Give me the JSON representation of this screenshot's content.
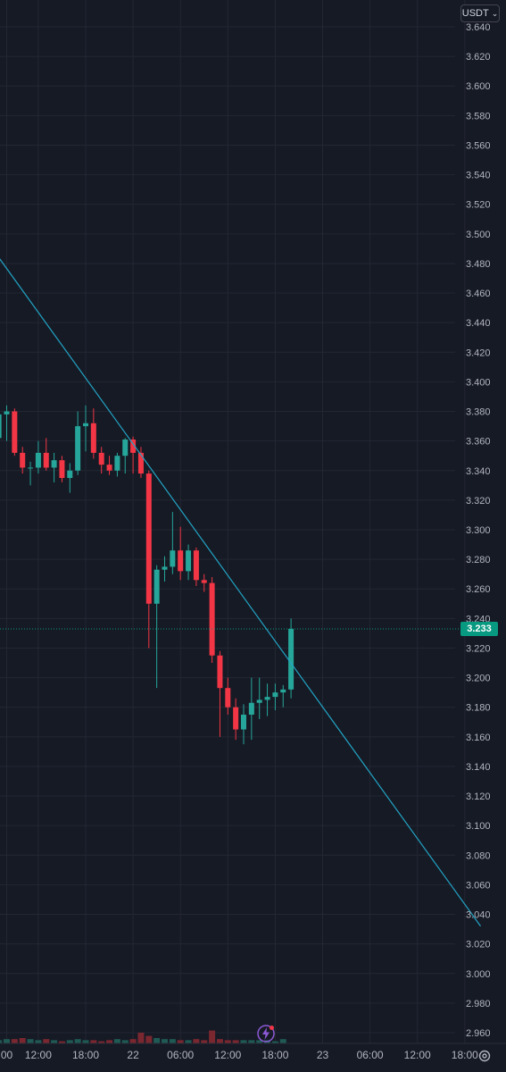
{
  "header": {
    "currency_label": "USDT",
    "currency_chevron": "chevron-down-icon"
  },
  "price_tag": {
    "value": "3.233",
    "color": "#089981"
  },
  "icons": {
    "settings": "gear-icon",
    "alert": "lightning-icon"
  },
  "colors": {
    "background": "#161a25",
    "grid": "#232733",
    "up": "#26a69a",
    "down": "#f23645",
    "trendline": "#22a4c4",
    "text": "#b2b5be"
  },
  "chart_data": {
    "type": "candlestick",
    "y_axis": {
      "min": 2.95,
      "max": 3.65,
      "ticks": [
        "3.640",
        "3.620",
        "3.600",
        "3.580",
        "3.560",
        "3.540",
        "3.520",
        "3.500",
        "3.480",
        "3.460",
        "3.440",
        "3.420",
        "3.400",
        "3.380",
        "3.360",
        "3.340",
        "3.320",
        "3.300",
        "3.280",
        "3.260",
        "3.240",
        "3.220",
        "3.200",
        "3.180",
        "3.160",
        "3.140",
        "3.120",
        "3.100",
        "3.080",
        "3.060",
        "3.040",
        "3.020",
        "3.000",
        "2.980",
        "2.960"
      ]
    },
    "x_axis": {
      "labels": [
        {
          "t": 0,
          "label": "00"
        },
        {
          "t": 4,
          "label": "12:00"
        },
        {
          "t": 10,
          "label": "18:00"
        },
        {
          "t": 16,
          "label": "22"
        },
        {
          "t": 22,
          "label": "06:00"
        },
        {
          "t": 28,
          "label": "12:00"
        },
        {
          "t": 34,
          "label": "18:00"
        },
        {
          "t": 40,
          "label": "23"
        },
        {
          "t": 46,
          "label": "06:00"
        },
        {
          "t": 52,
          "label": "12:00"
        },
        {
          "t": 58,
          "label": "18:00"
        }
      ]
    },
    "candles": [
      {
        "t": -1,
        "o": 3.362,
        "h": 3.382,
        "l": 3.355,
        "c": 3.378
      },
      {
        "t": 0,
        "o": 3.378,
        "h": 3.384,
        "l": 3.36,
        "c": 3.38
      },
      {
        "t": 1,
        "o": 3.38,
        "h": 3.382,
        "l": 3.35,
        "c": 3.352
      },
      {
        "t": 2,
        "o": 3.352,
        "h": 3.356,
        "l": 3.338,
        "c": 3.342
      },
      {
        "t": 3,
        "o": 3.342,
        "h": 3.346,
        "l": 3.33,
        "c": 3.342
      },
      {
        "t": 4,
        "o": 3.342,
        "h": 3.36,
        "l": 3.338,
        "c": 3.352
      },
      {
        "t": 5,
        "o": 3.352,
        "h": 3.362,
        "l": 3.34,
        "c": 3.342
      },
      {
        "t": 6,
        "o": 3.342,
        "h": 3.352,
        "l": 3.332,
        "c": 3.347
      },
      {
        "t": 7,
        "o": 3.347,
        "h": 3.35,
        "l": 3.332,
        "c": 3.335
      },
      {
        "t": 8,
        "o": 3.335,
        "h": 3.345,
        "l": 3.325,
        "c": 3.34
      },
      {
        "t": 9,
        "o": 3.34,
        "h": 3.38,
        "l": 3.337,
        "c": 3.37
      },
      {
        "t": 10,
        "o": 3.37,
        "h": 3.384,
        "l": 3.353,
        "c": 3.372
      },
      {
        "t": 11,
        "o": 3.372,
        "h": 3.382,
        "l": 3.348,
        "c": 3.352
      },
      {
        "t": 12,
        "o": 3.352,
        "h": 3.356,
        "l": 3.338,
        "c": 3.344
      },
      {
        "t": 13,
        "o": 3.344,
        "h": 3.35,
        "l": 3.337,
        "c": 3.34
      },
      {
        "t": 14,
        "o": 3.34,
        "h": 3.352,
        "l": 3.336,
        "c": 3.35
      },
      {
        "t": 15,
        "o": 3.35,
        "h": 3.362,
        "l": 3.338,
        "c": 3.361
      },
      {
        "t": 16,
        "o": 3.361,
        "h": 3.363,
        "l": 3.338,
        "c": 3.352
      },
      {
        "t": 17,
        "o": 3.352,
        "h": 3.356,
        "l": 3.335,
        "c": 3.338
      },
      {
        "t": 18,
        "o": 3.338,
        "h": 3.34,
        "l": 3.22,
        "c": 3.25
      },
      {
        "t": 19,
        "o": 3.25,
        "h": 3.276,
        "l": 3.193,
        "c": 3.273
      },
      {
        "t": 20,
        "o": 3.273,
        "h": 3.282,
        "l": 3.265,
        "c": 3.275
      },
      {
        "t": 21,
        "o": 3.275,
        "h": 3.312,
        "l": 3.27,
        "c": 3.286
      },
      {
        "t": 22,
        "o": 3.286,
        "h": 3.302,
        "l": 3.266,
        "c": 3.272
      },
      {
        "t": 23,
        "o": 3.272,
        "h": 3.29,
        "l": 3.266,
        "c": 3.286
      },
      {
        "t": 24,
        "o": 3.286,
        "h": 3.288,
        "l": 3.262,
        "c": 3.266
      },
      {
        "t": 25,
        "o": 3.266,
        "h": 3.27,
        "l": 3.258,
        "c": 3.264
      },
      {
        "t": 26,
        "o": 3.264,
        "h": 3.268,
        "l": 3.21,
        "c": 3.215
      },
      {
        "t": 27,
        "o": 3.215,
        "h": 3.218,
        "l": 3.16,
        "c": 3.193
      },
      {
        "t": 28,
        "o": 3.193,
        "h": 3.2,
        "l": 3.175,
        "c": 3.18
      },
      {
        "t": 29,
        "o": 3.18,
        "h": 3.186,
        "l": 3.158,
        "c": 3.165
      },
      {
        "t": 30,
        "o": 3.165,
        "h": 3.182,
        "l": 3.155,
        "c": 3.175
      },
      {
        "t": 31,
        "o": 3.175,
        "h": 3.2,
        "l": 3.158,
        "c": 3.183
      },
      {
        "t": 32,
        "o": 3.183,
        "h": 3.2,
        "l": 3.172,
        "c": 3.185
      },
      {
        "t": 33,
        "o": 3.185,
        "h": 3.196,
        "l": 3.174,
        "c": 3.187
      },
      {
        "t": 34,
        "o": 3.187,
        "h": 3.196,
        "l": 3.178,
        "c": 3.19
      },
      {
        "t": 35,
        "o": 3.19,
        "h": 3.195,
        "l": 3.18,
        "c": 3.192
      },
      {
        "t": 36,
        "o": 3.192,
        "h": 3.24,
        "l": 3.186,
        "c": 3.233
      }
    ],
    "volume": [
      3,
      4,
      4,
      5,
      4,
      3,
      4,
      3,
      2,
      3,
      4,
      3,
      3,
      2,
      3,
      4,
      3,
      4,
      10,
      7,
      5,
      4,
      4,
      3,
      3,
      4,
      3,
      12,
      4,
      3,
      3,
      3,
      3,
      3,
      3,
      2,
      4
    ],
    "trendline": {
      "t1": -1,
      "p1": 3.484,
      "t2": 60,
      "p2": 3.032
    },
    "last_price": 3.233,
    "grid": true
  }
}
